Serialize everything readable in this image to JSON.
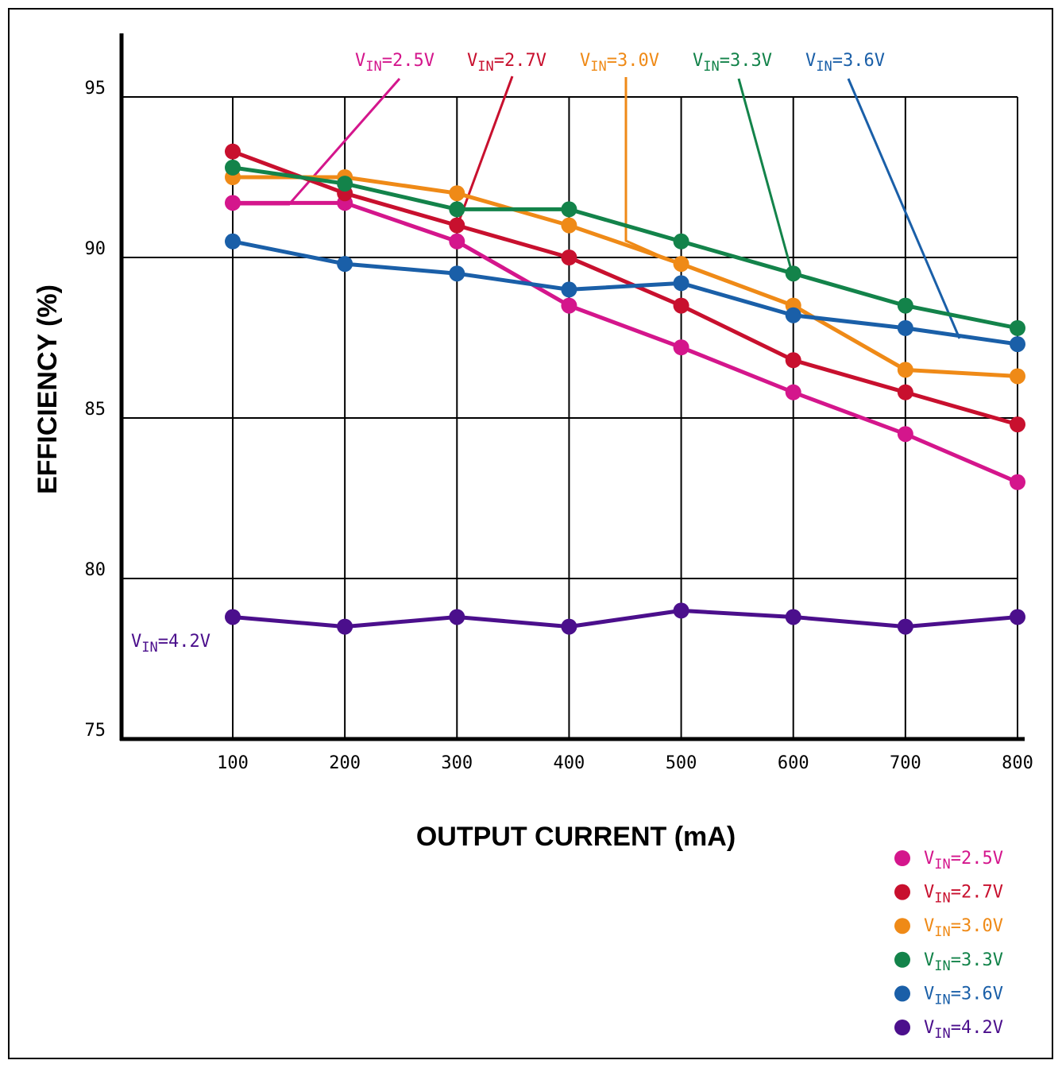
{
  "chart_data": {
    "type": "line",
    "xlabel": "OUTPUT CURRENT (mA)",
    "ylabel": "EFFICIENCY (%)",
    "xlim": [
      0,
      800
    ],
    "ylim": [
      75,
      95
    ],
    "x_ticks": [
      "100",
      "200",
      "300",
      "400",
      "500",
      "600",
      "700",
      "800"
    ],
    "y_ticks": [
      "75",
      "80",
      "85",
      "90",
      "95"
    ],
    "grid": true,
    "legend_placement": "bottom-right",
    "x": [
      100,
      200,
      300,
      400,
      500,
      600,
      700,
      800
    ],
    "series": [
      {
        "name": "VIN=2.5V",
        "prefix": "V",
        "sub": "IN",
        "suffix": "=2.5V",
        "color": "#d4168c",
        "values": [
          91.7,
          91.7,
          90.5,
          88.5,
          87.2,
          85.8,
          84.5,
          83.0
        ]
      },
      {
        "name": "VIN=2.7V",
        "prefix": "V",
        "sub": "IN",
        "suffix": "=2.7V",
        "color": "#c8102e",
        "values": [
          93.3,
          92.0,
          91.0,
          90.0,
          88.5,
          86.8,
          85.8,
          84.8
        ]
      },
      {
        "name": "VIN=3.0V",
        "prefix": "V",
        "sub": "IN",
        "suffix": "=3.0V",
        "color": "#ef8a17",
        "values": [
          92.5,
          92.5,
          92.0,
          91.0,
          89.8,
          88.5,
          86.5,
          86.3
        ]
      },
      {
        "name": "VIN=3.3V",
        "prefix": "V",
        "sub": "IN",
        "suffix": "=3.3V",
        "color": "#13834a",
        "values": [
          92.8,
          92.3,
          91.5,
          91.5,
          90.5,
          89.5,
          88.5,
          87.8
        ]
      },
      {
        "name": "VIN=3.6V",
        "prefix": "V",
        "sub": "IN",
        "suffix": "=3.6V",
        "color": "#1a5fa8",
        "values": [
          90.5,
          89.8,
          89.5,
          89.0,
          89.2,
          88.2,
          87.8,
          87.3
        ]
      },
      {
        "name": "VIN=4.2V",
        "prefix": "V",
        "sub": "IN",
        "suffix": "=4.2V",
        "color": "#4b0f8c",
        "values": [
          78.8,
          78.5,
          78.8,
          78.5,
          79.0,
          78.8,
          78.5,
          78.8
        ]
      }
    ]
  }
}
